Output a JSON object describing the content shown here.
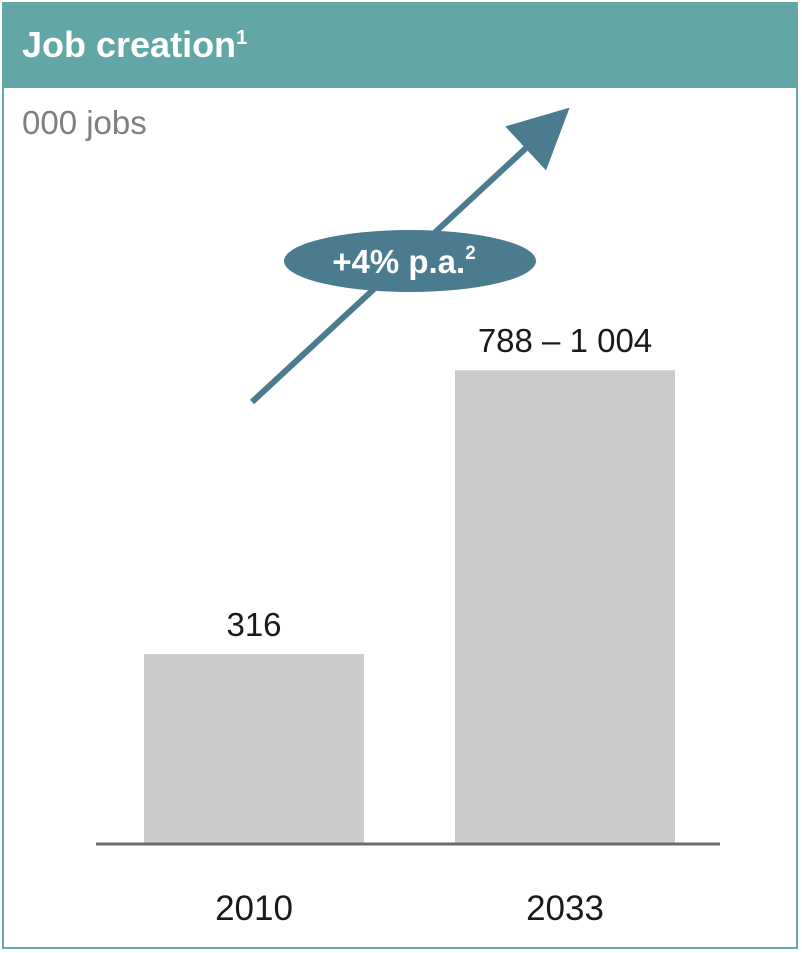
{
  "chart_data": {
    "type": "bar",
    "title": "Job creation",
    "title_footnote": "1",
    "ylabel": "000 jobs",
    "categories": [
      "2010",
      "2033"
    ],
    "values": [
      316,
      788
    ],
    "ranges": [
      [
        316,
        316
      ],
      [
        788,
        1004
      ]
    ],
    "data_labels": [
      "316",
      "788 – 1 004"
    ],
    "ylim": [
      0,
      1004
    ],
    "grid": false,
    "legend": "none",
    "annotation": {
      "text": "+4% p.a.",
      "footnote": "2"
    },
    "colors": {
      "header": "#62a7a5",
      "bar": "#cbcbcb",
      "arrow": "#4a7b8f",
      "axis": "#6b6b6b"
    }
  }
}
